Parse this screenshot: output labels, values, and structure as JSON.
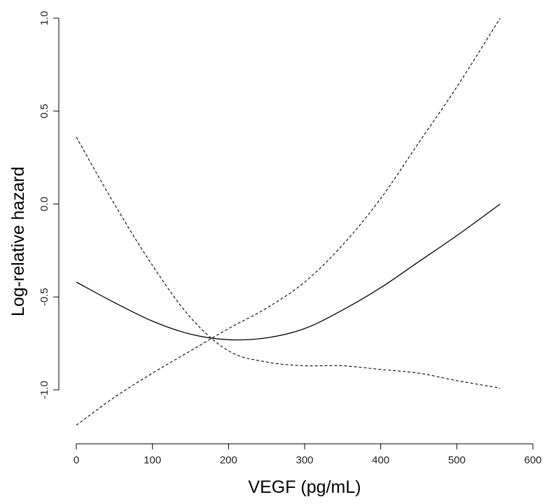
{
  "chart_data": {
    "type": "line",
    "xlabel": "VEGF (pg/mL)",
    "ylabel": "Log-relative hazard",
    "xlim": [
      0,
      600
    ],
    "ylim": [
      -1.25,
      1.0
    ],
    "xticks": [
      "0",
      "100",
      "200",
      "300",
      "400",
      "500",
      "600"
    ],
    "yticks": [
      "-1.0",
      "-0.5",
      "0.0",
      "0.5",
      "1.0"
    ],
    "grid": false,
    "series": [
      {
        "style": "solid",
        "x": [
          0,
          50,
          100,
          150,
          200,
          250,
          300,
          350,
          400,
          450,
          500,
          557
        ],
        "y": [
          -0.42,
          -0.53,
          -0.63,
          -0.7,
          -0.73,
          -0.72,
          -0.67,
          -0.57,
          -0.45,
          -0.31,
          -0.17,
          0.0
        ]
      },
      {
        "style": "dashed",
        "x": [
          0,
          50,
          100,
          150,
          200,
          250,
          300,
          350,
          400,
          450,
          500,
          557
        ],
        "y": [
          0.36,
          0.0,
          -0.33,
          -0.61,
          -0.79,
          -0.85,
          -0.87,
          -0.87,
          -0.89,
          -0.91,
          -0.95,
          -0.99
        ]
      },
      {
        "style": "dashed",
        "x": [
          0,
          50,
          100,
          150,
          200,
          250,
          300,
          350,
          400,
          450,
          500,
          557
        ],
        "y": [
          -1.19,
          -1.04,
          -0.91,
          -0.79,
          -0.67,
          -0.56,
          -0.42,
          -0.22,
          0.03,
          0.33,
          0.63,
          1.0
        ]
      }
    ]
  }
}
